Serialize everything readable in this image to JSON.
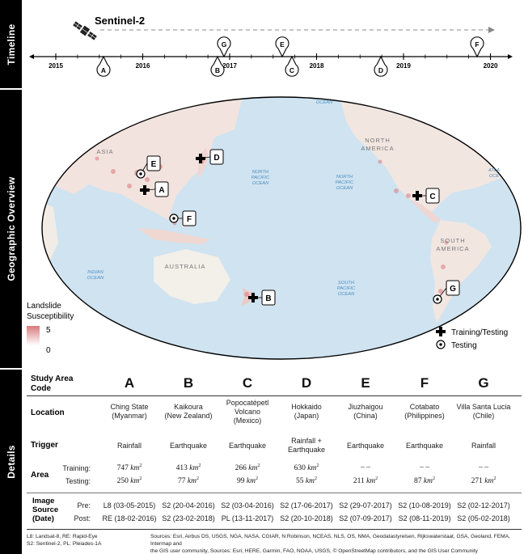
{
  "sections": {
    "timeline": "Timeline",
    "geo": "Geographic Overview",
    "details": "Details"
  },
  "timeline": {
    "sensor": "Sentinel-2",
    "years": [
      "2015",
      "2016",
      "2017",
      "2018",
      "2019",
      "2020"
    ],
    "markers_below": [
      "A",
      "B",
      "C",
      "D"
    ],
    "markers_above": [
      "G",
      "E",
      "F"
    ]
  },
  "map": {
    "oceans": [
      "OCEAN",
      "NORTH PACIFIC OCEAN",
      "NORTH PACIFIC OCEAN",
      "INDIAN OCEAN",
      "SOUTH PACIFIC OCEAN",
      "ATLA OCE"
    ],
    "continents": [
      "ASIA",
      "NORTH AMERICA",
      "AUSTRALIA",
      "SOUTH AMERICA"
    ],
    "sites": [
      "A",
      "B",
      "C",
      "D",
      "E",
      "F",
      "G"
    ]
  },
  "legend": {
    "title_line1": "Landslide",
    "title_line2": "Susceptibility",
    "max": "5",
    "min": "0",
    "training_testing": "Training/Testing",
    "testing": "Testing"
  },
  "table": {
    "header_line1": "Study Area",
    "header_line2": "Code",
    "codes": [
      "A",
      "B",
      "C",
      "D",
      "E",
      "F",
      "G"
    ],
    "rows": {
      "location": "Location",
      "trigger": "Trigger",
      "area": "Area",
      "training": "Training:",
      "testing": "Testing:",
      "image_source": [
        "Image",
        "Source",
        "(Date)"
      ],
      "pre": "Pre:",
      "post": "Post:"
    },
    "locations": [
      [
        "Ching State",
        "(Myanmar)"
      ],
      [
        "Kaikoura",
        "(New Zealand)"
      ],
      [
        "Popocatépetl",
        "Volcano",
        "(Mexico)"
      ],
      [
        "Hokkaido",
        "(Japan)"
      ],
      [
        "Jiuzhaigou",
        "(China)"
      ],
      [
        "Cotabato",
        "(Philippines)"
      ],
      [
        "Villa Santa Lucia",
        "(Chile)"
      ]
    ],
    "triggers": [
      [
        "Rainfall"
      ],
      [
        "Earthquake"
      ],
      [
        "Earthquake"
      ],
      [
        "Rainfall +",
        "Earthquake"
      ],
      [
        "Earthquake"
      ],
      [
        "Earthquake"
      ],
      [
        "Rainfall"
      ]
    ],
    "training_areas": [
      "747",
      "413",
      "266",
      "630",
      "– –",
      "– –",
      "– –"
    ],
    "testing_areas": [
      "250",
      "77",
      "99",
      "55",
      "211",
      "87",
      "271"
    ],
    "area_unit": "km",
    "area_unit_exp": "2",
    "pre_images": [
      "L8 (03-05-2015)",
      "S2 (20-04-2016)",
      "S2 (03-04-2016)",
      "S2 (17-06-2017)",
      "S2 (29-07-2017)",
      "S2 (10-08-2019)",
      "S2 (02-12-2017)"
    ],
    "post_images": [
      "RE (18-02-2016)",
      "S2 (23-02-2018)",
      "PL (13-11-2017)",
      "S2 (20-10-2018)",
      "S2 (07-09-2017)",
      "S2 (08-11-2019)",
      "S2 (05-02-2018)"
    ]
  },
  "footer": {
    "abbrev_l1": "L8: Landsat-8,   RE: Rapid-Eye",
    "abbrev_l2": "S2: Sentinel-2,  PL: Pleiades-1A",
    "sources_l1": "Sources: Esri, Airbus DS, USGS, NGA, NASA, CGIAR, N Robinson, NCEAS, NLS, OS, NMA, Geodatastyrelsen, Rijkswaterstaat, GSA, Geoland, FEMA, Intermap and",
    "sources_l2": "the GIS user community, Sources: Esri, HERE, Garmin, FAO, NOAA, USGS, © OpenStreetMap contributors, and the GIS User Community"
  },
  "colors": {
    "ocean": "#cfe3f1",
    "land": "#f2efe9",
    "susceptibility_high": "#d9797c"
  }
}
